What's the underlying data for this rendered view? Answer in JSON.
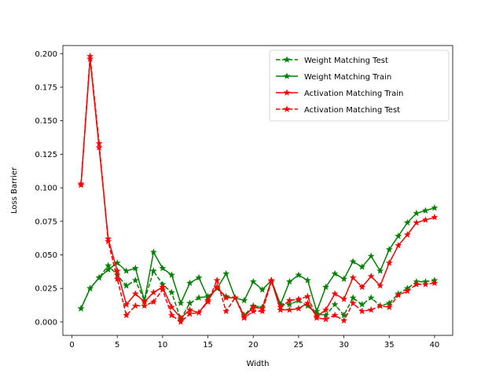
{
  "chart_data": {
    "type": "line",
    "title": "",
    "xlabel": "Width",
    "ylabel": "Loss Barrier",
    "xlim": [
      -1,
      42
    ],
    "ylim": [
      -0.01,
      0.206
    ],
    "xticks": [
      0,
      5,
      10,
      15,
      20,
      25,
      30,
      35,
      40
    ],
    "yticks": [
      0.0,
      0.025,
      0.05,
      0.075,
      0.1,
      0.125,
      0.15,
      0.175,
      0.2
    ],
    "ytick_labels": [
      "0.000",
      "0.025",
      "0.050",
      "0.075",
      "0.100",
      "0.125",
      "0.150",
      "0.175",
      "0.200"
    ],
    "grid": false,
    "legend_position": "top-right",
    "x": [
      1,
      2,
      3,
      4,
      5,
      6,
      7,
      8,
      9,
      10,
      11,
      12,
      13,
      14,
      15,
      16,
      17,
      18,
      19,
      20,
      21,
      22,
      23,
      24,
      25,
      26,
      27,
      28,
      29,
      30,
      31,
      32,
      33,
      34,
      35,
      36,
      37,
      38,
      39,
      40
    ],
    "series": [
      {
        "name": "Weight Matching Test",
        "color": "#008000",
        "linestyle": "dashed",
        "marker": "star",
        "values": [
          0.01,
          0.025,
          0.033,
          0.042,
          0.035,
          0.027,
          0.031,
          0.016,
          0.038,
          0.028,
          0.022,
          0.002,
          0.014,
          0.018,
          0.019,
          0.025,
          0.019,
          0.018,
          0.005,
          0.012,
          0.011,
          0.031,
          0.013,
          0.013,
          0.016,
          0.012,
          0.006,
          0.005,
          0.013,
          0.005,
          0.018,
          0.013,
          0.018,
          0.012,
          0.014,
          0.021,
          0.025,
          0.03,
          0.03,
          0.031
        ]
      },
      {
        "name": "Weight Matching Train",
        "color": "#008000",
        "linestyle": "solid",
        "marker": "star",
        "values": [
          0.01,
          0.025,
          0.033,
          0.039,
          0.044,
          0.038,
          0.04,
          0.016,
          0.052,
          0.04,
          0.035,
          0.014,
          0.029,
          0.033,
          0.018,
          0.025,
          0.036,
          0.018,
          0.016,
          0.03,
          0.024,
          0.031,
          0.013,
          0.03,
          0.035,
          0.031,
          0.008,
          0.026,
          0.036,
          0.032,
          0.045,
          0.041,
          0.049,
          0.038,
          0.054,
          0.064,
          0.074,
          0.081,
          0.083,
          0.085
        ]
      },
      {
        "name": "Activation Matching Train",
        "color": "#ff0000",
        "linestyle": "solid",
        "marker": "star",
        "values": [
          0.102,
          0.196,
          0.13,
          0.062,
          0.038,
          0.013,
          0.021,
          0.015,
          0.022,
          0.026,
          0.011,
          0.003,
          0.009,
          0.007,
          0.016,
          0.026,
          0.018,
          0.018,
          0.004,
          0.011,
          0.01,
          0.031,
          0.009,
          0.009,
          0.01,
          0.014,
          0.004,
          0.009,
          0.021,
          0.017,
          0.033,
          0.026,
          0.034,
          0.027,
          0.044,
          0.057,
          0.065,
          0.074,
          0.076,
          0.078
        ]
      },
      {
        "name": "Activation Matching Test",
        "color": "#ff0000",
        "linestyle": "dashed",
        "marker": "star",
        "values": [
          0.103,
          0.198,
          0.133,
          0.06,
          0.032,
          0.005,
          0.012,
          0.012,
          0.015,
          0.024,
          0.005,
          0.0,
          0.006,
          0.007,
          0.015,
          0.031,
          0.008,
          0.018,
          0.003,
          0.008,
          0.008,
          0.03,
          0.011,
          0.016,
          0.017,
          0.019,
          0.003,
          0.002,
          0.005,
          0.001,
          0.014,
          0.008,
          0.009,
          0.012,
          0.011,
          0.02,
          0.023,
          0.028,
          0.028,
          0.029
        ]
      }
    ]
  }
}
